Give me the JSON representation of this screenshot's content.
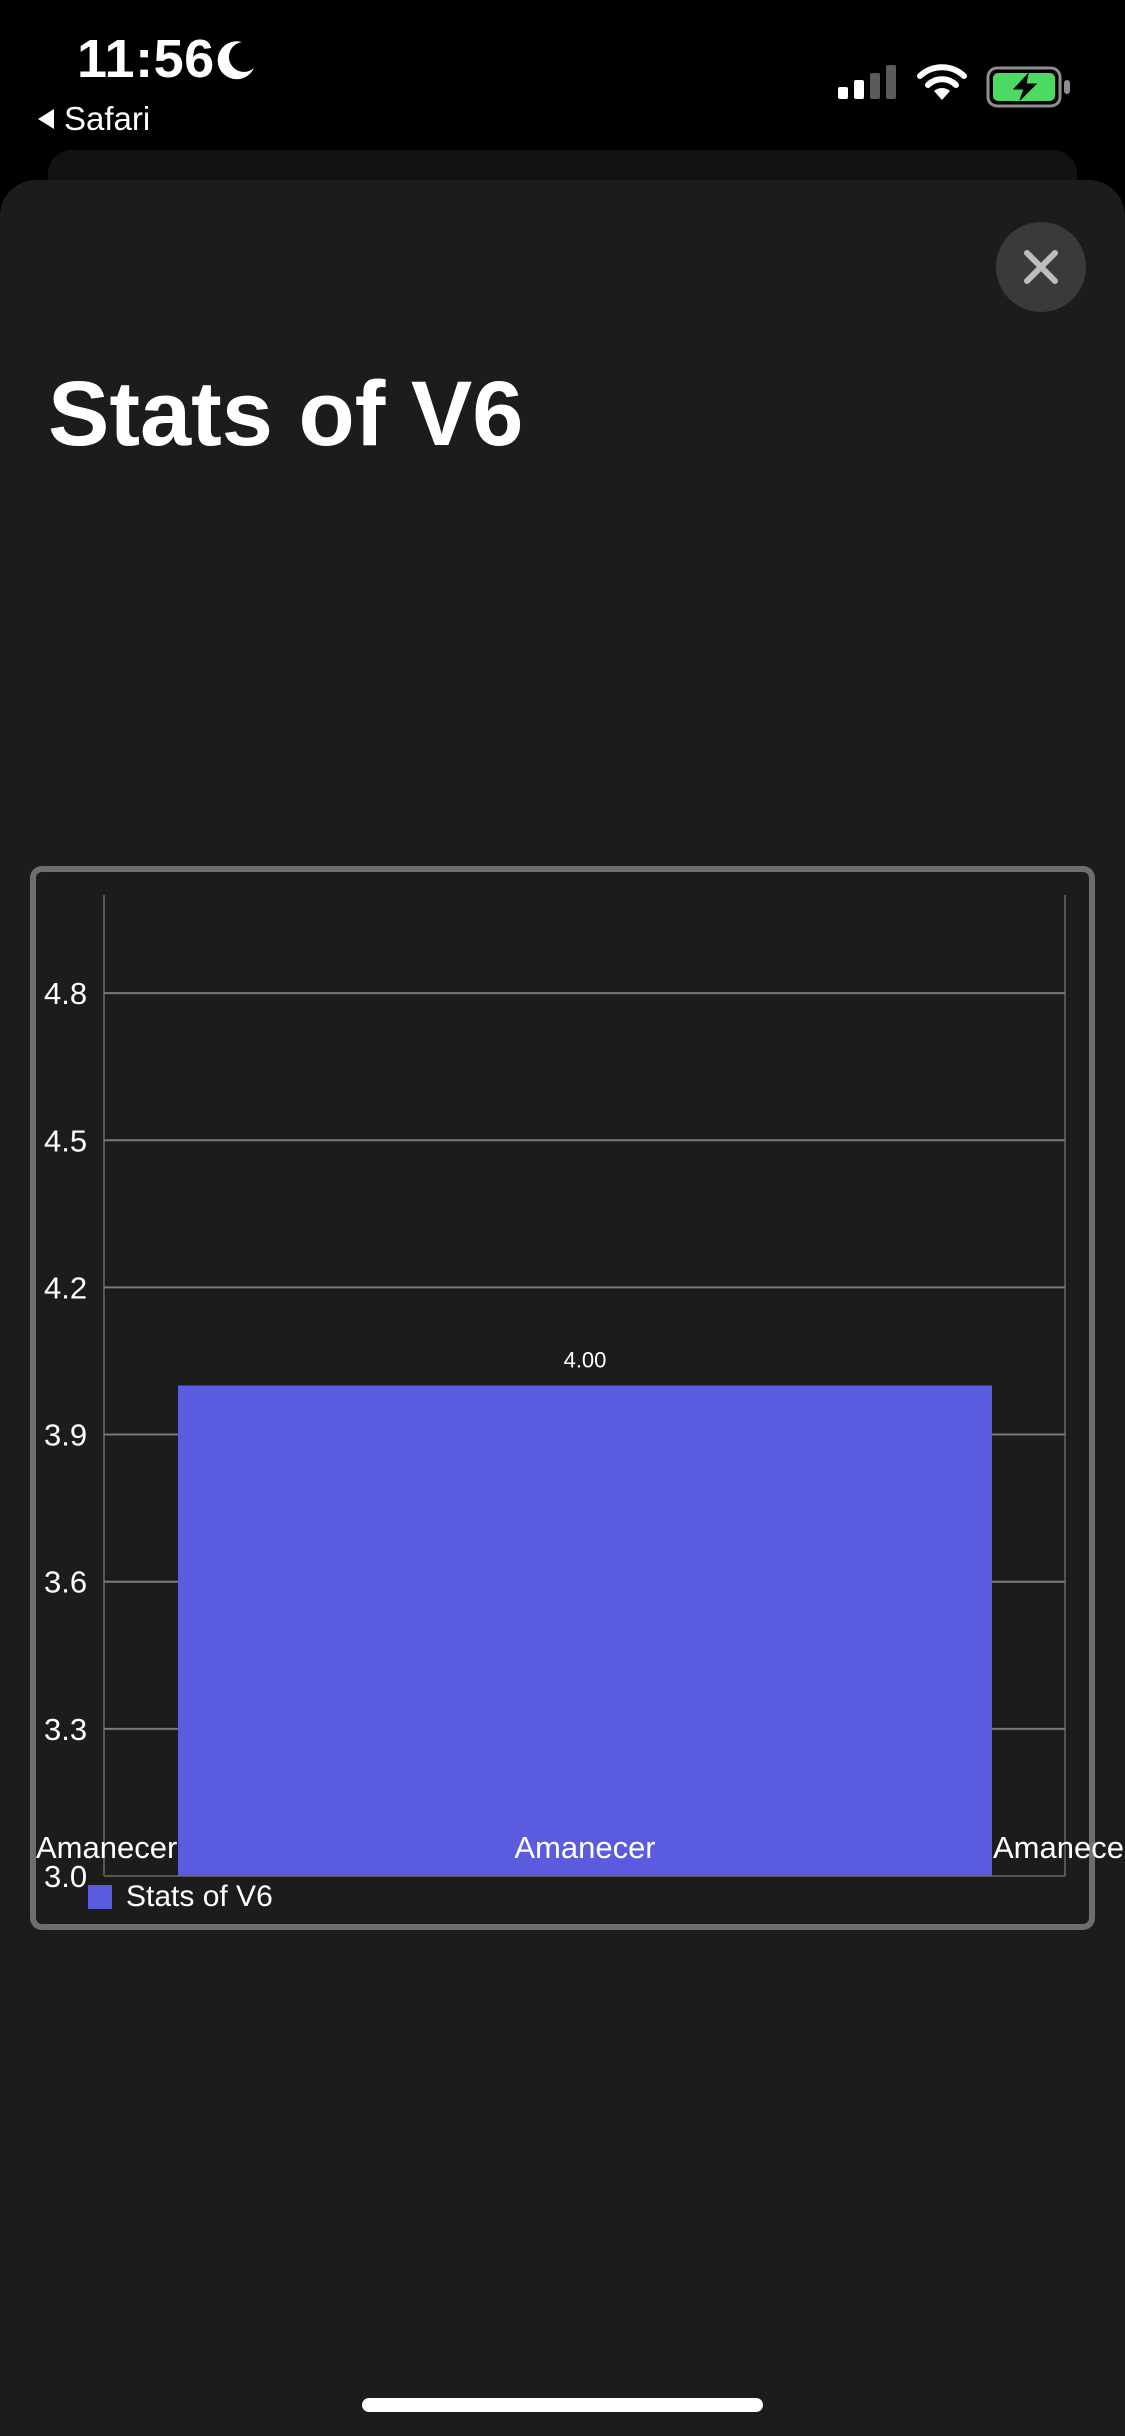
{
  "status_bar": {
    "time": "11:56",
    "back_label": "Safari",
    "icons": [
      "moon-icon",
      "signal-icon",
      "wifi-icon",
      "battery-charging-icon"
    ]
  },
  "sheet": {
    "title": "Stats of V6",
    "close_icon": "close-icon"
  },
  "colors": {
    "bar": "#5b5bdf",
    "background": "#1c1c1c",
    "battery_fill": "#4cd964"
  },
  "chart_data": {
    "type": "bar",
    "categories": [
      "Amanecer"
    ],
    "series": [
      {
        "name": "Stats of V6",
        "values": [
          4.0
        ],
        "value_labels": [
          "4.00"
        ]
      }
    ],
    "y_ticks": [
      "3.0",
      "3.3",
      "3.6",
      "3.9",
      "4.2",
      "4.5",
      "4.8"
    ],
    "x_tick_labels": [
      "Amanecer",
      "Amanecer",
      "Amanecer"
    ],
    "ylim": [
      3.0,
      5.0
    ],
    "grid": true,
    "legend": "bottom-left"
  }
}
